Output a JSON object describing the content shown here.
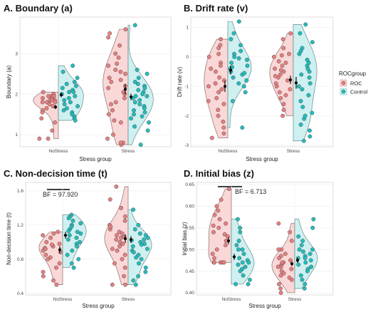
{
  "chart_data": [
    {
      "type": "scatter",
      "title": "A. Boundary (a)",
      "xlabel": "Stress group",
      "ylabel": "Boundary (a)",
      "categories": [
        "NoStress",
        "Stress"
      ],
      "ylim": [
        0.7,
        3.9
      ],
      "yticks": [
        1,
        2,
        3
      ],
      "grid": true,
      "series": [
        {
          "name": "ROC",
          "points": [
            [
              [
                1.95,
                1.9,
                1.95,
                1.85,
                1.8,
                2.0,
                1.9,
                1.8,
                1.7,
                1.85,
                1.75,
                1.6,
                1.55,
                1.4,
                1.1,
                0.9,
                0.9,
                1.3,
                1.85,
                1.9,
                2.05,
                1.95,
                1.8,
                1.65
              ]
            ],
            [
              [
                3.6,
                3.5,
                3.4,
                3.2,
                3.0,
                2.9,
                2.75,
                2.6,
                2.55,
                2.4,
                2.35,
                2.2,
                2.15,
                2.05,
                2.0,
                1.9,
                1.8,
                1.75,
                1.6,
                1.5,
                1.35,
                1.3,
                1.0,
                0.9,
                0.8,
                0.75,
                0.8,
                2.3,
                2.5,
                2.7
              ]
            ]
          ],
          "mean": [
            1.68,
            2.12
          ],
          "error": [
            0.05,
            0.13
          ]
        },
        {
          "name": "Control",
          "points": [
            [
              [
                2.7,
                2.55,
                2.4,
                2.3,
                2.2,
                2.15,
                2.1,
                2.05,
                2.0,
                1.95,
                1.9,
                1.85,
                1.8,
                1.75,
                1.7,
                1.65,
                1.6,
                1.55,
                1.5,
                1.45,
                1.4,
                1.35,
                2.25,
                2.05
              ]
            ],
            [
              [
                3.7,
                2.6,
                2.5,
                2.4,
                2.3,
                2.2,
                2.15,
                2.1,
                2.05,
                2.0,
                1.95,
                1.9,
                1.85,
                1.8,
                1.75,
                1.7,
                1.65,
                1.6,
                1.55,
                1.5,
                1.45,
                1.4,
                1.3,
                1.2,
                1.1,
                0.75,
                2.25,
                1.95
              ]
            ]
          ],
          "mean": [
            1.98,
            1.93
          ],
          "error": [
            0.06,
            0.08
          ]
        }
      ]
    },
    {
      "type": "scatter",
      "title": "B. Drift rate (v)",
      "xlabel": "Stress group",
      "ylabel": "Drift rate (v)",
      "categories": [
        "NoStress",
        "Stress"
      ],
      "ylim": [
        -3.05,
        1.35
      ],
      "yticks": [
        -3,
        -2,
        -1,
        0,
        1
      ],
      "grid": true,
      "series": [
        {
          "name": "ROC",
          "points": [
            [
              [
                0.6,
                0.4,
                0.3,
                0.0,
                -0.2,
                -0.3,
                -0.5,
                -0.7,
                -0.8,
                -0.9,
                -1.0,
                -1.1,
                -1.2,
                -1.4,
                -1.6,
                -1.8,
                -2.0,
                -2.2,
                -2.4,
                -2.6,
                -2.75,
                -0.4,
                -1.5,
                0.1
              ]
            ],
            [
              [
                0.8,
                0.6,
                0.3,
                0.1,
                0.0,
                -0.2,
                -0.3,
                -0.4,
                -0.5,
                -0.6,
                -0.7,
                -0.8,
                -0.9,
                -1.0,
                -1.1,
                -1.2,
                -1.4,
                -1.6,
                -1.8,
                -2.0,
                -0.15,
                -0.45,
                -0.65,
                -1.3,
                0.05
              ]
            ]
          ],
          "mean": [
            -1.0,
            -0.78
          ],
          "error": [
            0.19,
            0.14
          ]
        },
        {
          "name": "Control",
          "points": [
            [
              [
                1.2,
                0.8,
                0.6,
                0.4,
                0.2,
                0.1,
                -0.1,
                -0.2,
                -0.3,
                -0.4,
                -0.5,
                -0.6,
                -0.7,
                -0.8,
                -1.0,
                -1.2,
                -1.5,
                -2.4,
                -0.05,
                -0.35,
                -0.55,
                -0.9,
                0.0
              ]
            ],
            [
              [
                1.1,
                0.8,
                0.5,
                0.3,
                0.1,
                -0.1,
                -0.3,
                -0.5,
                -0.7,
                -0.9,
                -1.1,
                -1.3,
                -1.5,
                -1.7,
                -1.9,
                -2.1,
                -2.3,
                -2.5,
                -2.7,
                -2.85,
                -0.2,
                -0.4,
                -0.6,
                -1.0,
                -2.0,
                0.2
              ]
            ]
          ],
          "mean": [
            -0.45,
            -0.88
          ],
          "error": [
            0.15,
            0.2
          ]
        }
      ]
    },
    {
      "type": "scatter",
      "title": "C. Non-decision time (t)",
      "xlabel": "Stress group",
      "ylabel": "Non-decision time (t)",
      "categories": [
        "NoStress",
        "Stress"
      ],
      "ylim": [
        0.38,
        1.7
      ],
      "yticks": [
        0.4,
        0.8,
        1.2,
        1.6
      ],
      "grid": true,
      "annotation": {
        "label": "BF = 97.920",
        "y": 1.56
      },
      "series": [
        {
          "name": "ROC",
          "points": [
            [
              [
                1.12,
                1.1,
                1.05,
                1.0,
                0.98,
                0.95,
                0.93,
                0.9,
                0.88,
                0.85,
                0.82,
                0.8,
                0.75,
                0.7,
                0.65,
                0.6,
                0.55,
                0.5,
                1.08,
                0.97,
                0.92
              ]
            ],
            [
              [
                1.65,
                1.5,
                1.4,
                1.3,
                1.25,
                1.2,
                1.15,
                1.12,
                1.1,
                1.08,
                1.05,
                1.03,
                1.0,
                0.98,
                0.95,
                0.92,
                0.9,
                0.85,
                0.8,
                0.75,
                0.7,
                0.6,
                0.5,
                0.5,
                1.18,
                1.06
              ]
            ]
          ],
          "mean": [
            0.91,
            1.04
          ],
          "error": [
            0.04,
            0.05
          ]
        },
        {
          "name": "Control",
          "points": [
            [
              [
                1.32,
                1.3,
                1.28,
                1.25,
                1.2,
                1.18,
                1.15,
                1.12,
                1.1,
                1.08,
                1.05,
                1.03,
                1.0,
                0.98,
                0.95,
                0.9,
                0.85,
                0.8,
                0.75,
                0.7,
                1.22,
                1.13
              ]
            ],
            [
              [
                1.38,
                1.2,
                1.15,
                1.1,
                1.08,
                1.05,
                1.02,
                1.0,
                0.98,
                0.95,
                0.92,
                0.9,
                0.88,
                0.85,
                0.82,
                0.8,
                0.75,
                0.7,
                0.65,
                0.6,
                0.55,
                0.5,
                1.03,
                0.97
              ]
            ]
          ],
          "mean": [
            1.08,
            1.03
          ],
          "error": [
            0.04,
            0.04
          ]
        }
      ]
    },
    {
      "type": "scatter",
      "title": "D. Initial bias (z)",
      "xlabel": "Stress group",
      "ylabel": "Initial bias (z)",
      "categories": [
        "NoStress",
        "Stress"
      ],
      "ylim": [
        0.395,
        0.655
      ],
      "yticks": [
        0.4,
        0.45,
        0.5,
        0.55,
        0.6,
        0.65
      ],
      "grid": true,
      "annotation": {
        "label": "BF = 6.713",
        "y": 0.64
      },
      "series": [
        {
          "name": "ROC",
          "points": [
            [
              [
                0.64,
                0.615,
                0.6,
                0.59,
                0.58,
                0.57,
                0.56,
                0.55,
                0.54,
                0.53,
                0.52,
                0.51,
                0.5,
                0.49,
                0.48,
                0.47,
                0.47,
                0.47,
                0.47,
                0.47,
                0.555,
                0.535
              ]
            ],
            [
              [
                0.56,
                0.54,
                0.52,
                0.5,
                0.49,
                0.485,
                0.48,
                0.475,
                0.47,
                0.465,
                0.46,
                0.455,
                0.45,
                0.445,
                0.44,
                0.435,
                0.43,
                0.42,
                0.41,
                0.4,
                0.5,
                0.47,
                0.46
              ]
            ]
          ],
          "mean": [
            0.52,
            0.467
          ],
          "error": [
            0.008,
            0.005
          ]
        },
        {
          "name": "Control",
          "points": [
            [
              [
                0.57,
                0.55,
                0.54,
                0.52,
                0.51,
                0.5,
                0.49,
                0.48,
                0.475,
                0.47,
                0.465,
                0.46,
                0.455,
                0.45,
                0.44,
                0.43,
                0.42,
                0.42,
                0.5,
                0.47
              ]
            ],
            [
              [
                0.57,
                0.55,
                0.53,
                0.52,
                0.51,
                0.5,
                0.495,
                0.49,
                0.485,
                0.48,
                0.475,
                0.47,
                0.465,
                0.46,
                0.455,
                0.45,
                0.44,
                0.43,
                0.42,
                0.41,
                0.5,
                0.48
              ]
            ]
          ],
          "mean": [
            0.483,
            0.475
          ],
          "error": [
            0.007,
            0.006
          ]
        }
      ]
    }
  ],
  "legend": {
    "title": "ROCgroup",
    "position": "right",
    "items": [
      {
        "label": "ROC",
        "fill": "#f7cfcf",
        "point": "#e07b7b"
      },
      {
        "label": "Control",
        "fill": "#c6ecec",
        "point": "#2bbcbc"
      }
    ]
  },
  "colors": {
    "roc_fill": "#f9d4d4",
    "roc_point": "#e77f7f",
    "control_fill": "#c9eeee",
    "control_point": "#22bdbd",
    "mean": "#000000"
  }
}
